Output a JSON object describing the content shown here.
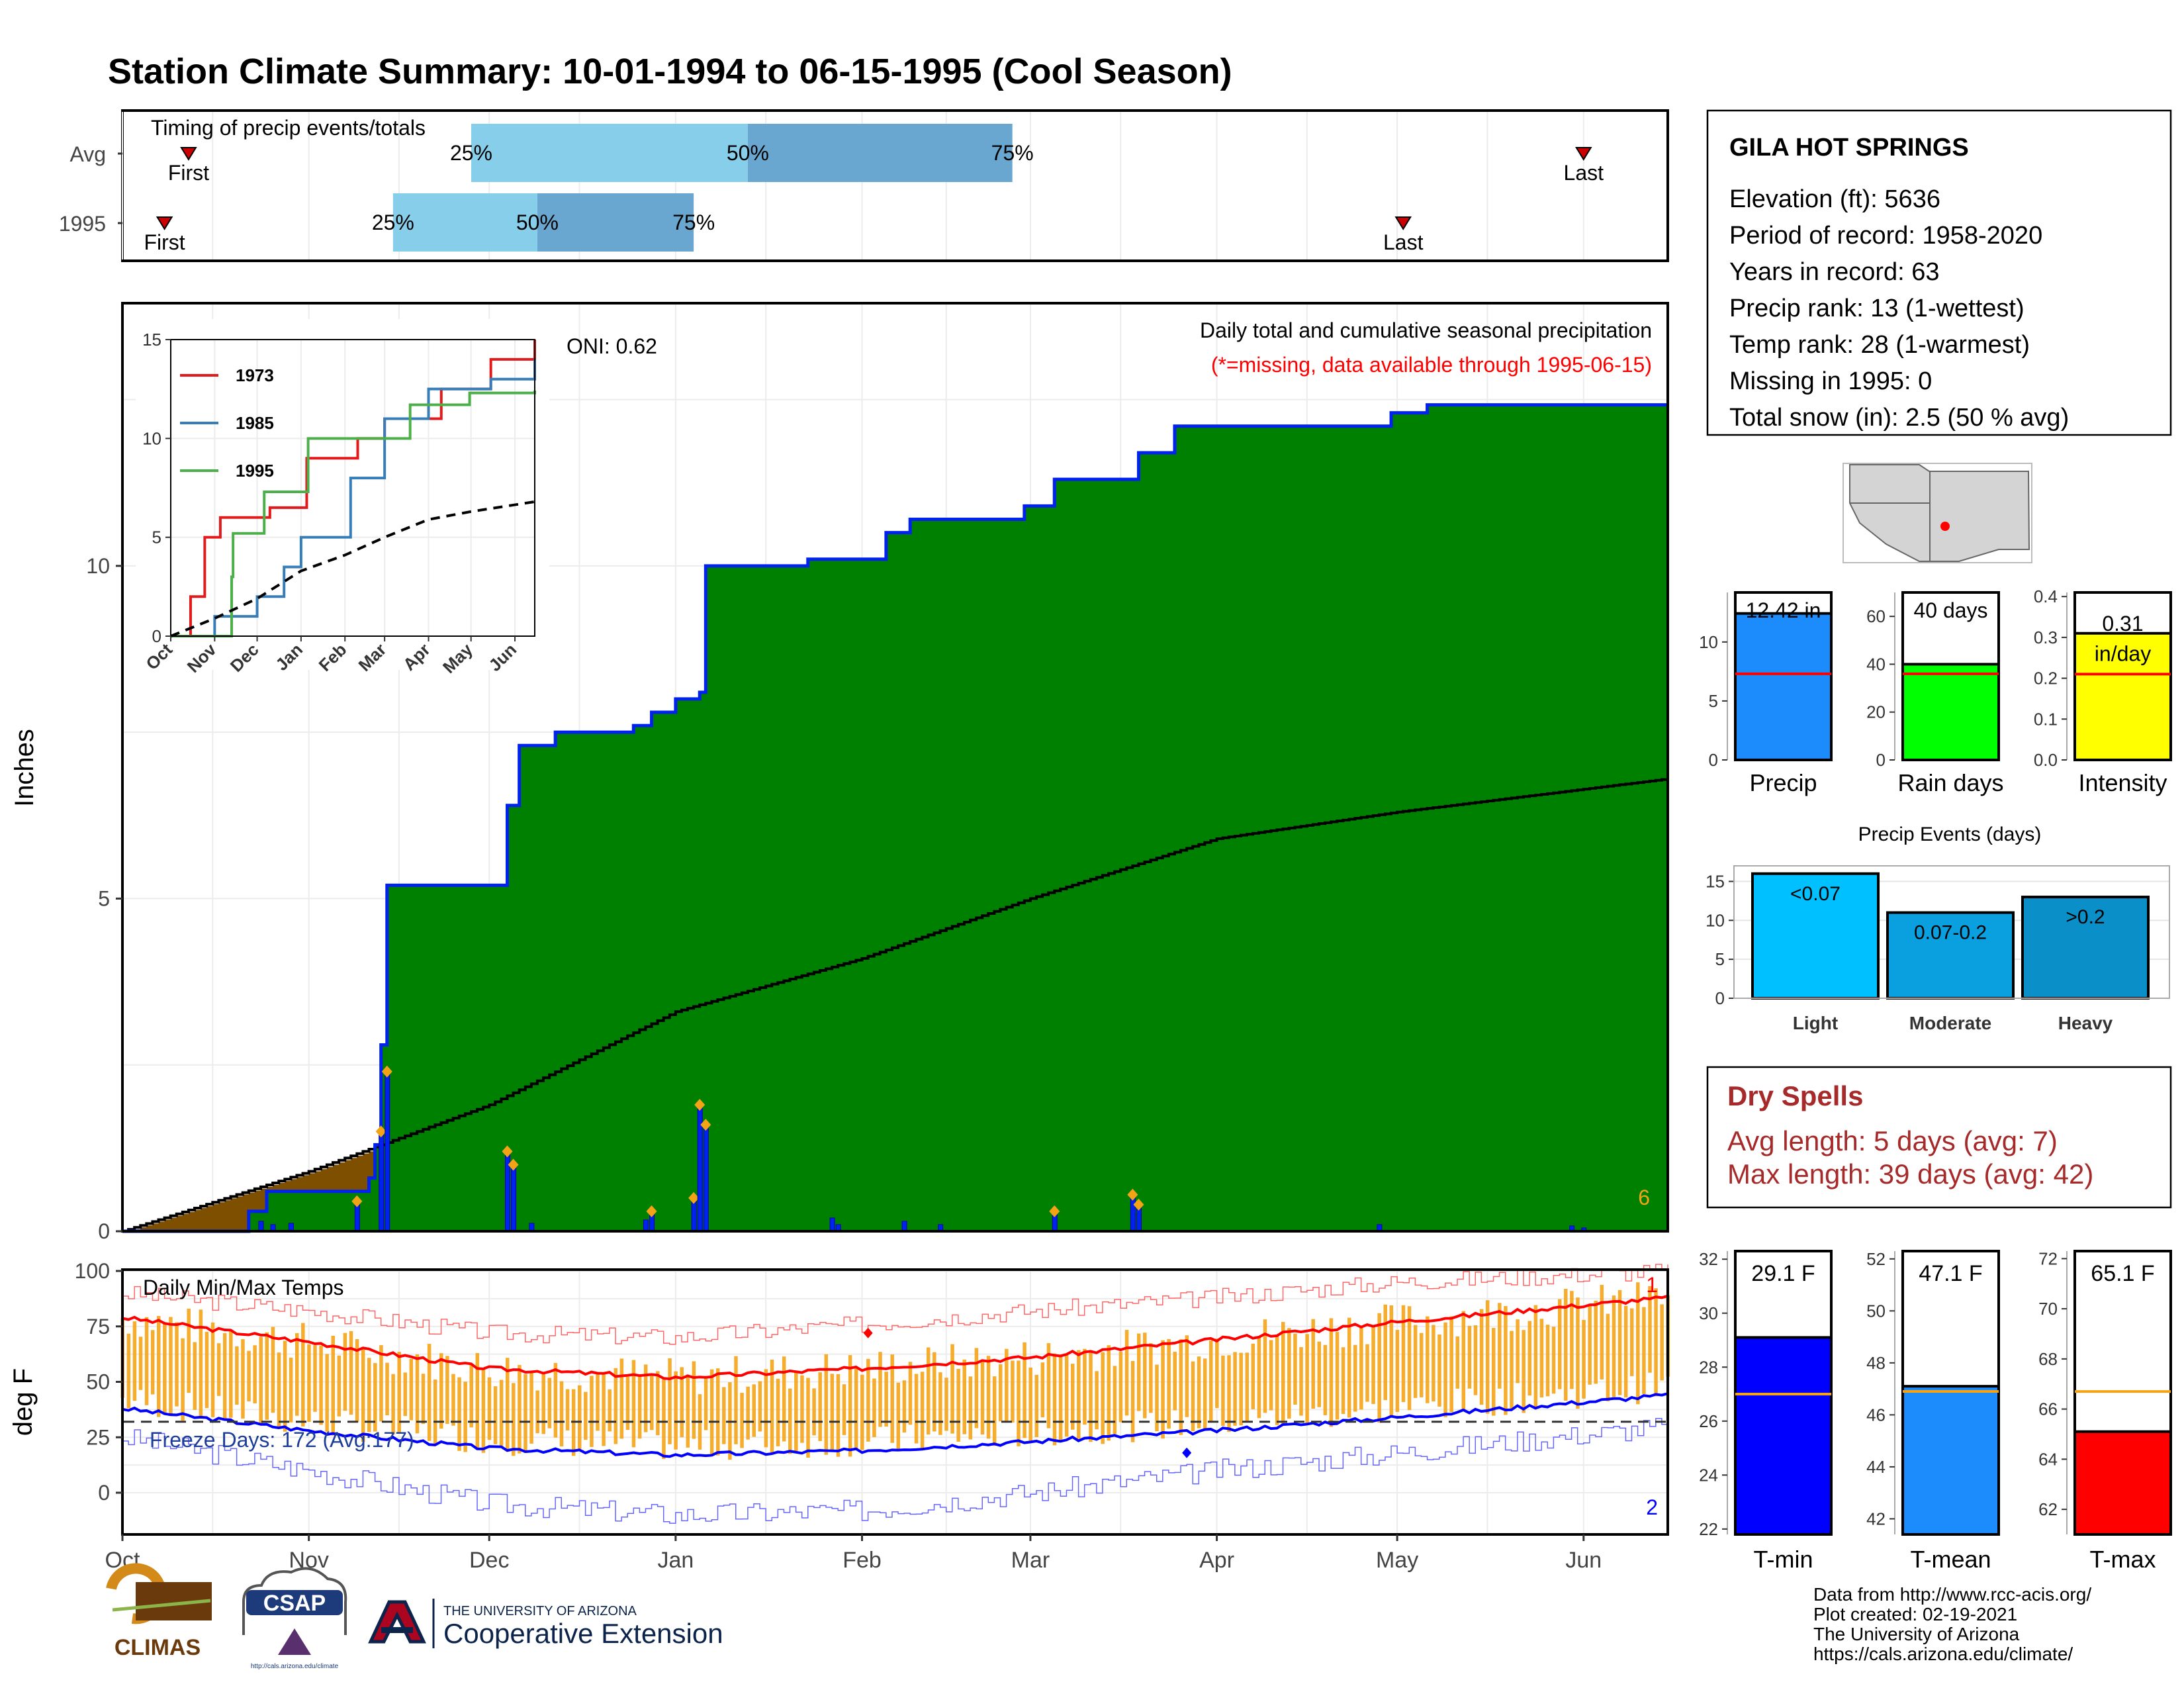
{
  "title": "Station Climate Summary: 10-01-1994 to 06-15-1995 (Cool Season)",
  "colors": {
    "title": "#233b88",
    "green": "#008000",
    "gray": "#dfdfdf",
    "brown": "#7f4f00",
    "blue": "#0022ee",
    "orange": "#f5a316",
    "red": "#ff0000",
    "darkred": "#a62a2a",
    "precip_bar": "#1c8cfd",
    "rain_bar": "#00ff00",
    "intensity_bar": "#ffff00",
    "light": "#00c0ff",
    "moderate": "#0aa0e0",
    "heavy": "#0a8fc8",
    "tmin": "#0000ff",
    "tmean": "#1c8cfd",
    "tmax": "#ff0000"
  },
  "timing": {
    "title": "Timing of precip events/totals",
    "rows": [
      {
        "label": "Avg",
        "first": "First",
        "last": "Last",
        "first_date": "1994-10-12",
        "last_date": "1995-06-01",
        "q25": "1994-11-28",
        "q50": "1995-01-13",
        "q75": "1995-02-26",
        "q25_label": "25%",
        "q50_label": "50%",
        "q75_label": "75%"
      },
      {
        "label": "1995",
        "first": "First",
        "last": "Last",
        "first_date": "1994-10-08",
        "last_date": "1995-05-02",
        "q25": "1994-11-15",
        "q50": "1994-12-09",
        "q75": "1995-01-04",
        "q25_label": "25%",
        "q50_label": "50%",
        "q75_label": "75%"
      }
    ]
  },
  "precip_panel": {
    "ylabel": "Inches",
    "oni": "ONI: 0.62",
    "caption": "Daily total and cumulative seasonal precipitation",
    "missing_note": "(*=missing, data available through 1995-06-15)",
    "corner_count": "6",
    "yticks": [
      0,
      5,
      10
    ]
  },
  "inset": {
    "years": [
      "1973",
      "1985",
      "1995"
    ],
    "yticks": [
      0,
      5,
      10,
      15
    ],
    "xticks": [
      "Oct",
      "Nov",
      "Dec",
      "Jan",
      "Feb",
      "Mar",
      "Apr",
      "May",
      "Jun"
    ]
  },
  "temp_panel": {
    "ylabel": "deg F",
    "title": "Daily Min/Max Temps",
    "freeze": "Freeze Days: 172 (Avg:177)",
    "top_count": "1",
    "bottom_count": "2",
    "yticks": [
      0,
      25,
      50,
      75,
      100
    ]
  },
  "xaxis": {
    "ticks": [
      "Oct",
      "Nov",
      "Dec",
      "Jan",
      "Feb",
      "Mar",
      "Apr",
      "May",
      "Jun"
    ]
  },
  "station": {
    "name": "GILA HOT SPRINGS",
    "lines": [
      "Elevation (ft): 5636",
      "Period of record: 1958-2020",
      "Years in record: 63",
      "Precip rank: 13 (1-wettest)",
      "Temp rank: 28 (1-warmest)",
      "Missing in 1995: 0",
      "Total snow (in): 2.5 (50 % avg)"
    ]
  },
  "mini_bars": [
    {
      "label": "Precip",
      "value": 12.42,
      "text": "12.42 in",
      "unit": "",
      "avg": 7.3,
      "ymax": 14.2,
      "yticks": [
        0,
        5,
        10
      ],
      "color": "precip_bar"
    },
    {
      "label": "Rain days",
      "value": 40,
      "text": "40 days",
      "unit": "",
      "avg": 36,
      "ymax": 70,
      "yticks": [
        0,
        20,
        40,
        60
      ],
      "color": "rain_bar"
    },
    {
      "label": "Intensity",
      "value": 0.31,
      "text": "0.31",
      "unit": "in/day",
      "avg": 0.21,
      "ymax": 0.41,
      "yticks": [
        0.0,
        0.1,
        0.2,
        0.3,
        0.4
      ],
      "color": "intensity_bar"
    }
  ],
  "events": {
    "title": "Precip Events (days)",
    "yticks": [
      0,
      5,
      10,
      15
    ],
    "categories": [
      "Light",
      "Moderate",
      "Heavy"
    ],
    "labels": [
      "<0.07",
      "0.07-0.2",
      ">0.2"
    ],
    "values": [
      16,
      11,
      13
    ]
  },
  "dry_spells": {
    "title": "Dry Spells",
    "avg": "Avg length: 5 days (avg: 7)",
    "max": "Max length: 39 days (avg: 42)"
  },
  "temp_bars": [
    {
      "label": "T-min",
      "text": "29.1 F",
      "value": 29.1,
      "avg": 27.0,
      "ymin": 21.8,
      "ymax": 32.3,
      "yticks": [
        22,
        24,
        26,
        28,
        30,
        32
      ],
      "color": "tmin"
    },
    {
      "label": "T-mean",
      "text": "47.1 F",
      "value": 47.1,
      "avg": 46.9,
      "ymin": 41.4,
      "ymax": 52.3,
      "yticks": [
        42,
        44,
        46,
        48,
        50,
        52
      ],
      "color": "tmean"
    },
    {
      "label": "T-max",
      "text": "65.1 F",
      "value": 65.1,
      "avg": 66.7,
      "ymin": 61.0,
      "ymax": 72.3,
      "yticks": [
        62,
        64,
        66,
        68,
        70,
        72
      ],
      "color": "tmax"
    }
  ],
  "footer": {
    "lines": [
      "Data from http://www.rcc-acis.org/",
      "Plot created: 02-19-2021",
      "The University of Arizona",
      "https://cals.arizona.edu/climate/"
    ],
    "logo_climas": "CLIMAS",
    "logo_csap": "CSAP",
    "logo_csap_url": "http://cals.arizona.edu/climate",
    "uofa_small": "THE UNIVERSITY OF ARIZONA",
    "uofa_big": "Cooperative Extension"
  },
  "chart_data": [
    {
      "type": "area",
      "title": "Daily total and cumulative seasonal precipitation",
      "ylabel": "Inches",
      "ylim": [
        0,
        13.6
      ],
      "xlim": [
        "1994-10-01",
        "1995-06-15"
      ],
      "cumulative_1995": [
        [
          "1994-10-01",
          0
        ],
        [
          "1994-10-22",
          0.3
        ],
        [
          "1994-10-25",
          0.6
        ],
        [
          "1994-11-11",
          0.8
        ],
        [
          "1994-11-12",
          1.3
        ],
        [
          "1994-11-13",
          2.8
        ],
        [
          "1994-11-14",
          5.2
        ],
        [
          "1994-11-30",
          5.2
        ],
        [
          "1994-12-04",
          6.4
        ],
        [
          "1994-12-06",
          7.3
        ],
        [
          "1994-12-12",
          7.5
        ],
        [
          "1994-12-25",
          7.6
        ],
        [
          "1994-12-28",
          7.8
        ],
        [
          "1995-01-01",
          8.0
        ],
        [
          "1995-01-05",
          8.1
        ],
        [
          "1995-01-06",
          10.0
        ],
        [
          "1995-01-23",
          10.1
        ],
        [
          "1995-02-05",
          10.5
        ],
        [
          "1995-02-09",
          10.7
        ],
        [
          "1995-02-28",
          10.9
        ],
        [
          "1995-03-05",
          11.3
        ],
        [
          "1995-03-19",
          11.7
        ],
        [
          "1995-03-25",
          12.1
        ],
        [
          "1995-04-08",
          12.1
        ],
        [
          "1995-04-30",
          12.3
        ],
        [
          "1995-05-06",
          12.42
        ],
        [
          "1995-06-15",
          12.42
        ]
      ],
      "cumulative_avg": [
        [
          "1994-10-01",
          0
        ],
        [
          "1994-11-01",
          0.9
        ],
        [
          "1994-12-01",
          1.9
        ],
        [
          "1995-01-01",
          3.3
        ],
        [
          "1995-02-01",
          4.1
        ],
        [
          "1995-03-01",
          5.0
        ],
        [
          "1995-04-01",
          5.9
        ],
        [
          "1995-05-01",
          6.3
        ],
        [
          "1995-06-15",
          6.8
        ]
      ],
      "daily": [
        [
          "1994-10-24",
          0.15
        ],
        [
          "1994-10-26",
          0.1
        ],
        [
          "1994-10-29",
          0.12
        ],
        [
          "1994-11-09",
          0.45
        ],
        [
          "1994-11-13",
          1.5
        ],
        [
          "1994-11-14",
          2.4
        ],
        [
          "1994-12-04",
          1.2
        ],
        [
          "1994-12-05",
          1.0
        ],
        [
          "1994-12-08",
          0.12
        ],
        [
          "1994-12-27",
          0.17
        ],
        [
          "1994-12-28",
          0.3
        ],
        [
          "1995-01-04",
          0.5
        ],
        [
          "1995-01-05",
          1.9
        ],
        [
          "1995-01-06",
          1.6
        ],
        [
          "1995-01-27",
          0.2
        ],
        [
          "1995-01-28",
          0.1
        ],
        [
          "1995-02-08",
          0.15
        ],
        [
          "1995-02-14",
          0.1
        ],
        [
          "1995-03-05",
          0.3
        ],
        [
          "1995-03-18",
          0.55
        ],
        [
          "1995-03-19",
          0.4
        ],
        [
          "1995-04-28",
          0.1
        ],
        [
          "1995-05-30",
          0.08
        ],
        [
          "1995-06-01",
          0.05
        ]
      ]
    },
    {
      "type": "line",
      "title": "",
      "ylim": [
        0,
        15
      ],
      "series": [
        {
          "name": "1973",
          "color": "#e31a1c",
          "points": [
            [
              "1994-10-01",
              0
            ],
            [
              "1994-10-15",
              2
            ],
            [
              "1994-10-25",
              5
            ],
            [
              "1994-11-05",
              6
            ],
            [
              "1994-12-10",
              6.5
            ],
            [
              "1995-01-05",
              9
            ],
            [
              "1995-02-10",
              10
            ],
            [
              "1995-03-01",
              11
            ],
            [
              "1995-04-10",
              12.5
            ],
            [
              "1995-05-15",
              14
            ],
            [
              "1995-06-15",
              15
            ]
          ]
        },
        {
          "name": "1985",
          "color": "#377eb8",
          "points": [
            [
              "1994-10-01",
              0
            ],
            [
              "1994-11-01",
              1
            ],
            [
              "1994-12-01",
              2
            ],
            [
              "1994-12-20",
              3.5
            ],
            [
              "1995-01-01",
              5
            ],
            [
              "1995-02-05",
              8
            ],
            [
              "1995-03-01",
              11
            ],
            [
              "1995-04-01",
              12.5
            ],
            [
              "1995-05-15",
              13
            ],
            [
              "1995-06-15",
              14
            ]
          ]
        },
        {
          "name": "1995",
          "color": "#4daf4a",
          "points": [
            [
              "1994-10-01",
              0
            ],
            [
              "1994-11-13",
              3
            ],
            [
              "1994-11-14",
              5.2
            ],
            [
              "1994-12-06",
              7.3
            ],
            [
              "1995-01-06",
              10
            ],
            [
              "1995-03-19",
              11.7
            ],
            [
              "1995-04-30",
              12.3
            ],
            [
              "1995-06-15",
              12.42
            ]
          ]
        },
        {
          "name": "",
          "color": "#000000",
          "dashed": true,
          "points": [
            [
              "1994-10-01",
              0
            ],
            [
              "1994-11-01",
              0.9
            ],
            [
              "1994-12-01",
              1.9
            ],
            [
              "1995-01-01",
              3.3
            ],
            [
              "1995-02-01",
              4.1
            ],
            [
              "1995-03-01",
              5.0
            ],
            [
              "1995-04-01",
              5.9
            ],
            [
              "1995-05-01",
              6.3
            ],
            [
              "1995-06-15",
              6.8
            ]
          ]
        }
      ]
    },
    {
      "type": "bar",
      "title": "Daily Min/Max Temps",
      "ylabel": "deg F",
      "ylim": [
        -15,
        105
      ],
      "freeze_line": 32,
      "avg_max": [
        [
          "1994-10-01",
          79
        ],
        [
          "1994-11-01",
          68
        ],
        [
          "1994-12-01",
          56
        ],
        [
          "1995-01-01",
          52
        ],
        [
          "1995-02-01",
          56
        ],
        [
          "1995-03-01",
          61
        ],
        [
          "1995-04-01",
          69
        ],
        [
          "1995-05-01",
          77
        ],
        [
          "1995-06-15",
          88
        ]
      ],
      "avg_min": [
        [
          "1994-10-01",
          38
        ],
        [
          "1994-11-01",
          28
        ],
        [
          "1994-12-01",
          20
        ],
        [
          "1995-01-01",
          17
        ],
        [
          "1995-02-01",
          19
        ],
        [
          "1995-03-01",
          23
        ],
        [
          "1995-04-01",
          28
        ],
        [
          "1995-05-01",
          34
        ],
        [
          "1995-06-15",
          44
        ]
      ],
      "record_max": [
        [
          "1994-10-01",
          90
        ],
        [
          "1994-11-01",
          82
        ],
        [
          "1994-12-01",
          72
        ],
        [
          "1995-01-01",
          70
        ],
        [
          "1995-02-01",
          76
        ],
        [
          "1995-03-01",
          82
        ],
        [
          "1995-04-01",
          88
        ],
        [
          "1995-05-01",
          95
        ],
        [
          "1995-06-15",
          100
        ]
      ],
      "record_min": [
        [
          "1994-10-01",
          25
        ],
        [
          "1994-11-01",
          10
        ],
        [
          "1994-12-01",
          -5
        ],
        [
          "1995-01-01",
          -10
        ],
        [
          "1995-02-01",
          -8
        ],
        [
          "1995-03-01",
          0
        ],
        [
          "1995-04-01",
          10
        ],
        [
          "1995-05-01",
          18
        ],
        [
          "1995-06-15",
          30
        ]
      ]
    },
    {
      "type": "bar",
      "title": "Precip Events (days)",
      "categories": [
        "Light",
        "Moderate",
        "Heavy"
      ],
      "values": [
        16,
        11,
        13
      ],
      "ylim": [
        0,
        17
      ]
    }
  ]
}
